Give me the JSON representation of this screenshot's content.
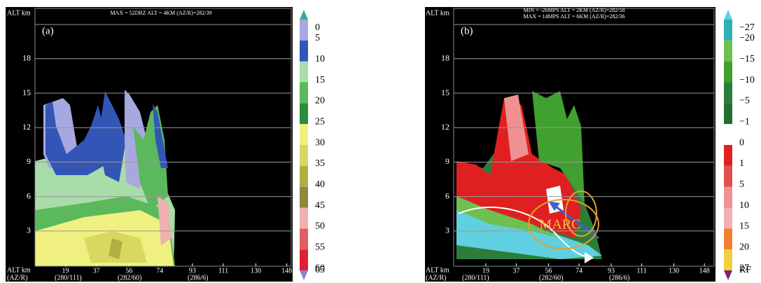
{
  "panels": [
    {
      "label": "(a)",
      "header": [
        "MAX = 52DBZ  ALT = 4KM  (AZ/R)=282/39"
      ],
      "y_axis_title": "ALT km",
      "x_axis_title": "ALT km",
      "x_axis_sub": "(AZ/R)",
      "yticks": [
        3,
        6,
        9,
        12,
        15,
        18
      ],
      "xticks": [
        19,
        37,
        56,
        74,
        93,
        111,
        130,
        148
      ],
      "azr": [
        "(280/111)",
        "(282/60)",
        "(286/6)"
      ],
      "colorbar": {
        "labels": [
          "0",
          "5",
          "10",
          "15",
          "20",
          "25",
          "30",
          "35",
          "40",
          "45",
          "50",
          "55",
          "60",
          "65"
        ],
        "colors": [
          "#3aa89a",
          "#a7a8e0",
          "#3355b5",
          "#a8dca8",
          "#5cb85c",
          "#2e8b3e",
          "#f0f080",
          "#d8d860",
          "#b0b040",
          "#8e8a3a",
          "#f0b0b0",
          "#e06060",
          "#e02030",
          "#9a7ad0"
        ]
      }
    },
    {
      "label": "(b)",
      "header": [
        "MIN = -26MPS  ALT = 2KM  (AZ/R)=282/58",
        "MAX = 14MPS  ALT = 6KM  (AZ/R)=282/36"
      ],
      "y_axis_title": "ALT km",
      "x_axis_title": "ALT km",
      "x_axis_sub": "(AZ/R)",
      "yticks": [
        3,
        6,
        9,
        12,
        15,
        18
      ],
      "xticks": [
        19,
        37,
        56,
        74,
        93,
        111,
        130,
        148
      ],
      "azr": [
        "(280/111)",
        "(282/60)",
        "(286/6)"
      ],
      "annotation": "MARC",
      "colorbar": {
        "labels": [
          "−27",
          "−20",
          "−15",
          "−10",
          "−5",
          "−1",
          "0",
          "1",
          "5",
          "10",
          "15",
          "20",
          "27",
          "RF"
        ],
        "colors": [
          "#60d0e0",
          "#30b0b8",
          "#70c050",
          "#40a030",
          "#2d7d3a",
          "#207030",
          "#ffffff",
          "#e02020",
          "#e05050",
          "#f09090",
          "#f0b0b0",
          "#f08030",
          "#f0d040",
          "#802080"
        ]
      }
    }
  ]
}
